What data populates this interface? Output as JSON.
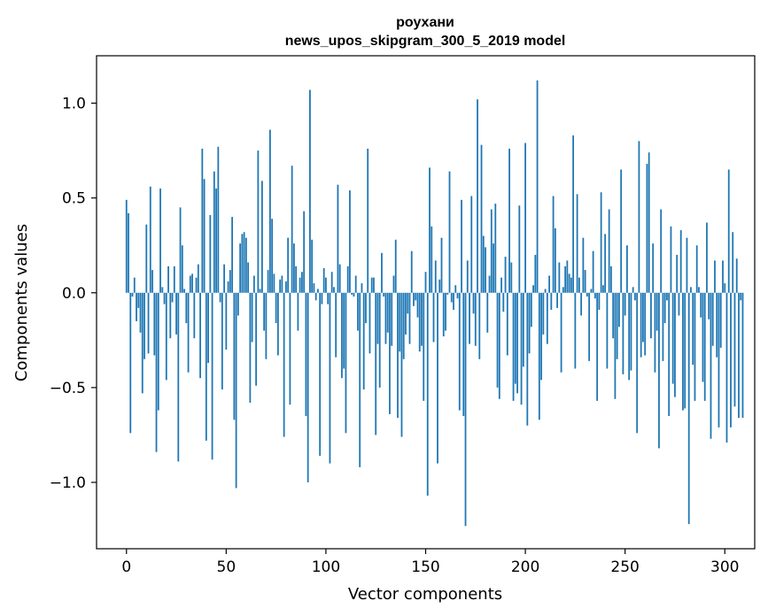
{
  "chart_data": {
    "type": "bar",
    "title": "роухани",
    "subtitle": "news_upos_skipgram_300_5_2019 model",
    "xlabel": "Vector components",
    "ylabel": "Components values",
    "xlim": [
      -15,
      315
    ],
    "ylim": [
      -1.35,
      1.25
    ],
    "xticks": [
      0,
      50,
      100,
      150,
      200,
      250,
      300
    ],
    "xtick_labels": [
      "0",
      "50",
      "100",
      "150",
      "200",
      "250",
      "300"
    ],
    "yticks": [
      -1.0,
      -0.5,
      0.0,
      0.5,
      1.0
    ],
    "ytick_labels": [
      "−1.0",
      "−0.5",
      "0.0",
      "0.5",
      "1.0"
    ],
    "bar_color": "#1f77b4",
    "grid": false,
    "legend": "none",
    "values": [
      0.49,
      0.42,
      -0.74,
      -0.02,
      0.08,
      -0.15,
      -0.08,
      -0.21,
      -0.53,
      -0.35,
      0.36,
      -0.32,
      0.56,
      0.12,
      -0.33,
      -0.84,
      -0.62,
      0.55,
      0.03,
      -0.06,
      -0.46,
      0.14,
      -0.24,
      -0.05,
      0.14,
      -0.22,
      -0.89,
      0.45,
      0.25,
      0.02,
      -0.16,
      -0.42,
      0.09,
      0.1,
      -0.24,
      0.08,
      0.15,
      -0.45,
      0.76,
      0.6,
      -0.78,
      -0.37,
      0.41,
      -0.88,
      0.64,
      0.55,
      0.77,
      -0.05,
      -0.51,
      0.15,
      -0.3,
      0.06,
      0.12,
      0.4,
      -0.67,
      -1.03,
      -0.12,
      0.26,
      0.31,
      0.32,
      0.29,
      0.16,
      -0.58,
      -0.26,
      0.09,
      -0.49,
      0.75,
      0.02,
      0.59,
      -0.2,
      -0.35,
      0.12,
      0.86,
      0.39,
      0.1,
      -0.16,
      -0.33,
      0.07,
      0.09,
      -0.76,
      0.06,
      0.29,
      -0.59,
      0.67,
      0.26,
      0.14,
      -0.2,
      0.08,
      0.11,
      0.43,
      -0.65,
      -1.0,
      1.07,
      0.28,
      0.05,
      -0.04,
      0.02,
      -0.86,
      -0.06,
      0.13,
      0.08,
      -0.06,
      -0.9,
      0.11,
      0.03,
      -0.34,
      0.57,
      0.15,
      -0.45,
      -0.4,
      -0.74,
      0.14,
      0.54,
      -0.01,
      -0.02,
      0.09,
      -0.2,
      -0.92,
      0.05,
      -0.51,
      -0.16,
      0.76,
      -0.32,
      0.08,
      0.08,
      -0.75,
      -0.27,
      -0.5,
      0.21,
      -0.02,
      -0.27,
      -0.21,
      -0.64,
      -0.28,
      0.09,
      0.28,
      -0.66,
      -0.31,
      -0.76,
      -0.35,
      -0.22,
      -0.11,
      -0.27,
      0.22,
      -0.07,
      -0.04,
      -0.13,
      -0.31,
      -0.28,
      -0.57,
      0.11,
      -1.07,
      0.66,
      0.35,
      -0.26,
      0.17,
      -0.9,
      0.07,
      0.29,
      -0.23,
      -0.2,
      -0.01,
      0.64,
      -0.05,
      -0.09,
      0.04,
      -0.03,
      -0.62,
      0.49,
      -0.65,
      -1.23,
      0.17,
      -0.27,
      0.51,
      -0.11,
      -0.28,
      1.02,
      -0.35,
      0.78,
      0.3,
      0.24,
      -0.21,
      0.09,
      0.44,
      0.26,
      0.47,
      -0.5,
      -0.56,
      0.08,
      -0.1,
      0.19,
      -0.33,
      0.76,
      0.16,
      -0.57,
      -0.48,
      -0.53,
      0.46,
      -0.59,
      -0.39,
      0.79,
      -0.7,
      -0.32,
      -0.18,
      0.04,
      0.2,
      1.12,
      -0.67,
      -0.46,
      -0.22,
      0.02,
      -0.27,
      0.09,
      -0.09,
      0.51,
      0.34,
      -0.08,
      0.16,
      -0.42,
      0.03,
      0.14,
      0.17,
      0.1,
      0.08,
      0.83,
      -0.4,
      0.52,
      0.08,
      -0.12,
      0.29,
      0.12,
      -0.02,
      -0.36,
      0.02,
      0.22,
      -0.03,
      -0.57,
      -0.09,
      0.53,
      0.04,
      0.31,
      -0.4,
      0.44,
      0.14,
      -0.24,
      -0.56,
      -0.35,
      -0.18,
      0.65,
      -0.43,
      -0.12,
      0.25,
      -0.46,
      -0.41,
      0.03,
      -0.04,
      -0.74,
      0.8,
      -0.34,
      -0.26,
      -0.33,
      0.68,
      0.74,
      -0.24,
      0.26,
      -0.42,
      -0.2,
      -0.82,
      0.44,
      -0.36,
      -0.16,
      -0.04,
      -0.65,
      0.35,
      -0.48,
      -0.55,
      0.2,
      -0.12,
      0.33,
      -0.62,
      -0.61,
      0.29,
      -1.22,
      0.03,
      -0.38,
      -0.57,
      0.25,
      0.03,
      -0.13,
      -0.47,
      -0.57,
      0.37,
      -0.14,
      -0.77,
      -0.28,
      0.17,
      -0.34,
      -0.71,
      -0.29,
      0.17,
      0.05,
      -0.79,
      0.65,
      -0.71,
      0.32,
      -0.6,
      0.18,
      -0.66,
      -0.04,
      -0.66
    ]
  }
}
